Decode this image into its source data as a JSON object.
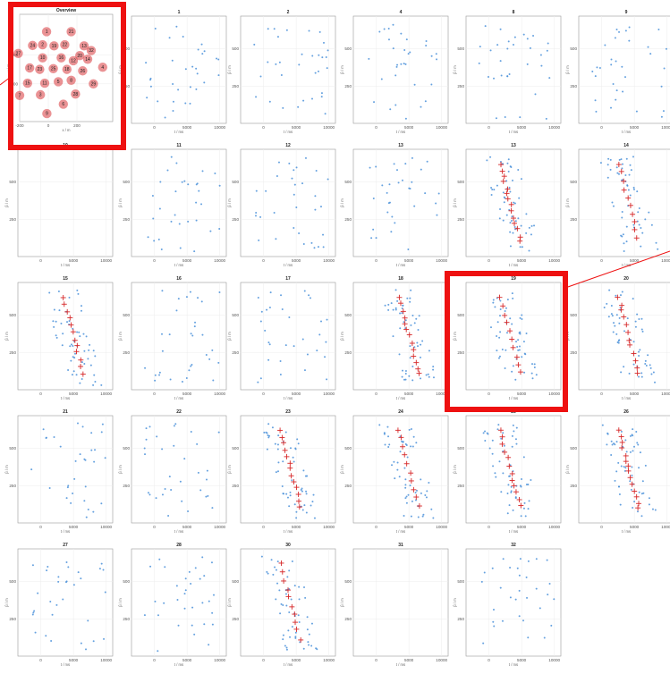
{
  "chart_data": {
    "type": "scatter",
    "overview": {
      "title": "Overview",
      "xlabel": "x / m",
      "ylabel": "y / m",
      "xlim": [
        -200,
        450
      ],
      "ylim": [
        -60,
        680
      ],
      "xticks": [
        "-200",
        "0",
        "200"
      ],
      "yticks": [
        "200",
        "400"
      ],
      "station_color": "#d9393c",
      "stations": [
        {
          "id": "1",
          "x": -12,
          "y": 560
        },
        {
          "id": "2",
          "x": -40,
          "y": 470
        },
        {
          "id": "21",
          "x": 160,
          "y": 560
        },
        {
          "id": "24",
          "x": -110,
          "y": 465
        },
        {
          "id": "19",
          "x": 40,
          "y": 462
        },
        {
          "id": "22",
          "x": 115,
          "y": 470
        },
        {
          "id": "13",
          "x": 250,
          "y": 462
        },
        {
          "id": "32",
          "x": 300,
          "y": 430
        },
        {
          "id": "20",
          "x": 220,
          "y": 395
        },
        {
          "id": "14",
          "x": 275,
          "y": 370
        },
        {
          "id": "10",
          "x": -40,
          "y": 380
        },
        {
          "id": "16",
          "x": 90,
          "y": 380
        },
        {
          "id": "12",
          "x": 175,
          "y": 360
        },
        {
          "id": "4",
          "x": 380,
          "y": 315
        },
        {
          "id": "17",
          "x": -130,
          "y": 310
        },
        {
          "id": "23",
          "x": -60,
          "y": 300
        },
        {
          "id": "25",
          "x": 35,
          "y": 305
        },
        {
          "id": "18",
          "x": 130,
          "y": 300
        },
        {
          "id": "26",
          "x": 240,
          "y": 290
        },
        {
          "id": "29",
          "x": 315,
          "y": 200
        },
        {
          "id": "15",
          "x": -145,
          "y": 205
        },
        {
          "id": "11",
          "x": -25,
          "y": 205
        },
        {
          "id": "5",
          "x": 70,
          "y": 215
        },
        {
          "id": "8",
          "x": 160,
          "y": 225
        },
        {
          "id": "7",
          "x": -200,
          "y": 120
        },
        {
          "id": "3",
          "x": -55,
          "y": 125
        },
        {
          "id": "6",
          "x": 105,
          "y": 60
        },
        {
          "id": "9",
          "x": -10,
          "y": -5
        },
        {
          "id": "28",
          "x": 190,
          "y": 130
        },
        {
          "id": "27",
          "x": -210,
          "y": 410
        }
      ]
    },
    "panel_axes": {
      "xlabel": "t / ms",
      "ylabel": "β / m",
      "xlim": [
        -3500,
        11000
      ],
      "ylim": [
        0,
        720
      ],
      "xticks": [
        "0",
        "5000",
        "10000"
      ],
      "yticks": [
        "250",
        "500"
      ]
    },
    "point_color": "#4a90d9",
    "pick_color": "#d62728",
    "panels": [
      {
        "id": "1"
      },
      {
        "id": "2"
      },
      {
        "id": "4"
      },
      {
        "id": "8"
      },
      {
        "id": "9"
      },
      {
        "id": "10",
        "empty": true
      },
      {
        "id": "11"
      },
      {
        "id": "12"
      },
      {
        "id": "13"
      },
      {
        "id": "13",
        "trend": true
      },
      {
        "id": "14",
        "trend": true
      },
      {
        "id": "15",
        "trend": true
      },
      {
        "id": "16"
      },
      {
        "id": "17"
      },
      {
        "id": "18",
        "trend": true
      },
      {
        "id": "19",
        "trend": true
      },
      {
        "id": "20",
        "trend": true
      },
      {
        "id": "21"
      },
      {
        "id": "22"
      },
      {
        "id": "23",
        "trend": true
      },
      {
        "id": "24",
        "trend": true
      },
      {
        "id": "25",
        "trend": true
      },
      {
        "id": "26",
        "trend": true
      },
      {
        "id": "27"
      },
      {
        "id": "28"
      },
      {
        "id": "30",
        "trend": true
      },
      {
        "id": "31",
        "empty": true
      },
      {
        "id": "32"
      }
    ]
  }
}
